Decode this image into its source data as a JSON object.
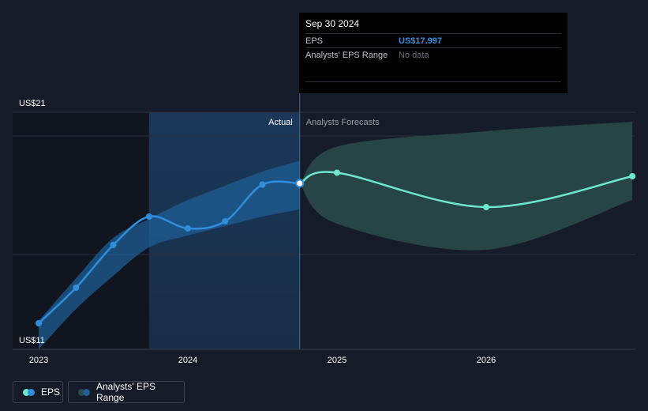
{
  "tooltip": {
    "date": "Sep 30 2024",
    "eps_label": "EPS",
    "eps_value": "US$17.997",
    "range_label": "Analysts' EPS Range",
    "range_value": "No data"
  },
  "labels": {
    "actual": "Actual",
    "forecast": "Analysts Forecasts"
  },
  "legend": {
    "eps": "EPS",
    "range": "Analysts' EPS Range"
  },
  "colors": {
    "background": "#151b28",
    "actual_line": "#2f8fdc",
    "actual_band": "#1e5d96",
    "forecast_line": "#6ee7cf",
    "forecast_band": "#2a4b4c",
    "highlight": "#1b3a5c"
  },
  "chart_data": {
    "type": "line",
    "y_tick_labels": [
      "US$21",
      "US$11"
    ],
    "ylim": [
      11,
      21
    ],
    "x_tick_labels": [
      "2023",
      "2024",
      "2025",
      "2026"
    ],
    "xlim": [
      2023.0,
      2026.98
    ],
    "highlight_start": 2023.74,
    "divider_x": 2024.75,
    "grid": true,
    "series": [
      {
        "name": "EPS",
        "kind": "actual",
        "x": [
          2023.0,
          2023.25,
          2023.5,
          2023.74,
          2024.0,
          2024.25,
          2024.5,
          2024.75
        ],
        "y": [
          12.1,
          13.6,
          15.4,
          16.6,
          16.1,
          16.4,
          17.95,
          18.0
        ]
      },
      {
        "name": "EPS",
        "kind": "forecast",
        "x": [
          2024.75,
          2025.0,
          2026.0,
          2026.98
        ],
        "y": [
          18.0,
          18.45,
          17.0,
          18.3
        ]
      }
    ],
    "bands": [
      {
        "name": "Analysts' EPS Range",
        "kind": "actual",
        "x": [
          2023.0,
          2023.25,
          2023.5,
          2023.74,
          2024.0,
          2024.25,
          2024.5,
          2024.75
        ],
        "upper": [
          12.2,
          14.0,
          15.7,
          16.5,
          17.3,
          17.9,
          18.5,
          18.95
        ],
        "lower": [
          11.0,
          12.7,
          14.1,
          15.3,
          15.8,
          16.2,
          16.6,
          16.9
        ]
      },
      {
        "name": "Analysts' EPS Range",
        "kind": "forecast",
        "x": [
          2024.75,
          2025.0,
          2026.0,
          2026.98
        ],
        "upper": [
          18.0,
          19.55,
          20.2,
          20.6
        ],
        "lower": [
          18.0,
          16.3,
          15.2,
          17.3
        ]
      }
    ]
  }
}
